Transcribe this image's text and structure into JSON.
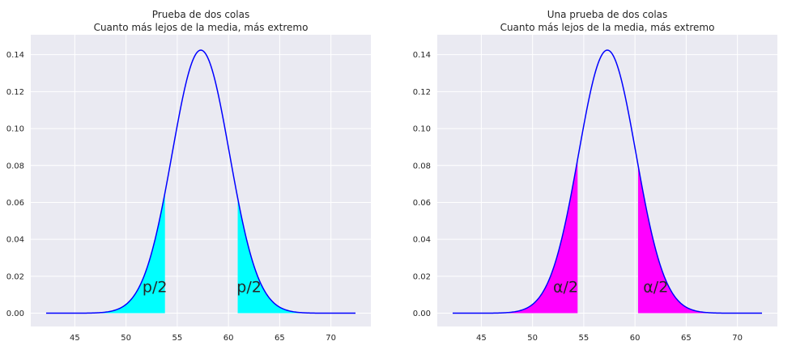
{
  "chart_data": [
    {
      "type": "area",
      "title": "Prueba de dos colas",
      "subtitle": "Cuanto más lejos de la media, más extremo",
      "distribution": {
        "kind": "normal",
        "mean": 57.3,
        "sd": 2.8
      },
      "x_range": [
        42.2,
        72.4
      ],
      "xlim": [
        40.7,
        73.9
      ],
      "ylim": [
        -0.0072,
        0.1508
      ],
      "xticks": [
        45,
        50,
        55,
        60,
        65,
        70
      ],
      "yticks": [
        0.0,
        0.02,
        0.04,
        0.06,
        0.08,
        0.1,
        0.12,
        0.14
      ],
      "ytick_labels": [
        "0.00",
        "0.02",
        "0.04",
        "0.06",
        "0.08",
        "0.10",
        "0.12",
        "0.14"
      ],
      "shaded_regions": [
        {
          "x_from": 42.2,
          "x_to": 53.8,
          "color": "#00ffff",
          "label": "p/2",
          "label_x": 51.6,
          "label_y": 0.0115
        },
        {
          "x_from": 60.9,
          "x_to": 72.4,
          "color": "#00ffff",
          "label": "p/2",
          "label_x": 60.8,
          "label_y": 0.0115
        }
      ],
      "line_color": "#0000ff",
      "grid": true,
      "background": "#eaeaf2"
    },
    {
      "type": "area",
      "title": "Una prueba de dos colas",
      "subtitle": "Cuanto más lejos de la media, más extremo",
      "distribution": {
        "kind": "normal",
        "mean": 57.3,
        "sd": 2.8
      },
      "x_range": [
        42.2,
        72.4
      ],
      "xlim": [
        40.7,
        73.9
      ],
      "ylim": [
        -0.0072,
        0.1508
      ],
      "xticks": [
        45,
        50,
        55,
        60,
        65,
        70
      ],
      "yticks": [
        0.0,
        0.02,
        0.04,
        0.06,
        0.08,
        0.1,
        0.12,
        0.14
      ],
      "ytick_labels": [
        "0.00",
        "0.02",
        "0.04",
        "0.06",
        "0.08",
        "0.10",
        "0.12",
        "0.14"
      ],
      "shaded_regions": [
        {
          "x_from": 42.2,
          "x_to": 54.4,
          "color": "#ff00ff",
          "label": "α/2",
          "label_x": 52.0,
          "label_y": 0.0115
        },
        {
          "x_from": 60.3,
          "x_to": 72.4,
          "color": "#ff00ff",
          "label": "α/2",
          "label_x": 60.8,
          "label_y": 0.0115
        }
      ],
      "line_color": "#0000ff",
      "grid": true,
      "background": "#eaeaf2"
    }
  ]
}
